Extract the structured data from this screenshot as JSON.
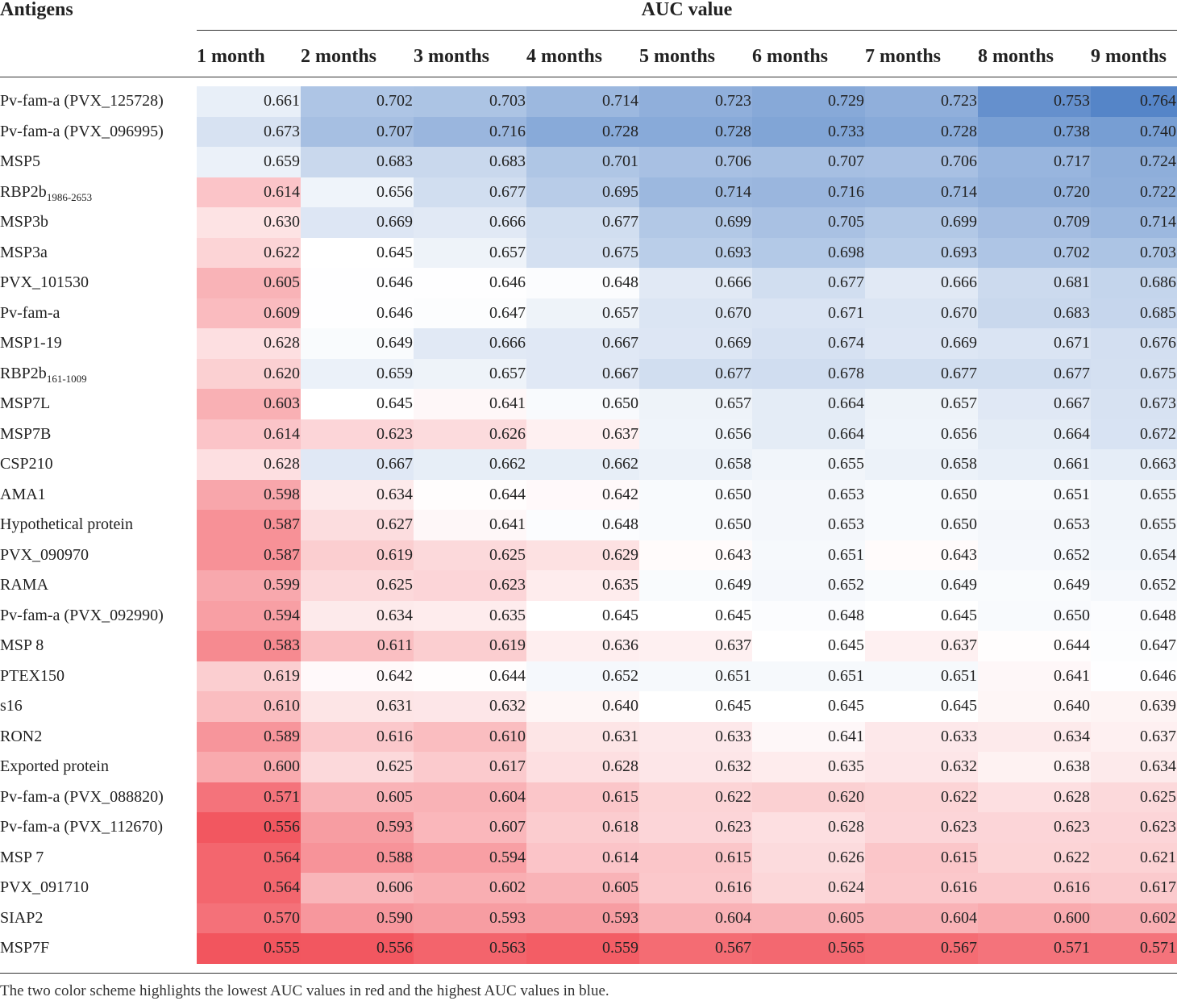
{
  "header": {
    "antigens": "Antigens",
    "auc": "AUC value",
    "months": [
      "1 month",
      "2 months",
      "3 months",
      "4 months",
      "5 months",
      "6 months",
      "7 months",
      "8 months",
      "9 months"
    ]
  },
  "colors": {
    "low": "#f2555e",
    "mid": "#ffffff",
    "high": "#5585c8"
  },
  "chart_data": {
    "type": "table",
    "title": "AUC value",
    "columns": [
      "Antigens",
      "1 month",
      "2 months",
      "3 months",
      "4 months",
      "5 months",
      "6 months",
      "7 months",
      "8 months",
      "9 months"
    ],
    "rows": [
      {
        "antigen": "Pv-fam-a (PVX_125728)",
        "values": [
          "0.661",
          "0.702",
          "0.703",
          "0.714",
          "0.723",
          "0.729",
          "0.723",
          "0.753",
          "0.764"
        ]
      },
      {
        "antigen": "Pv-fam-a (PVX_096995)",
        "values": [
          "0.673",
          "0.707",
          "0.716",
          "0.728",
          "0.728",
          "0.733",
          "0.728",
          "0.738",
          "0.740"
        ]
      },
      {
        "antigen": "MSP5",
        "values": [
          "0.659",
          "0.683",
          "0.683",
          "0.701",
          "0.706",
          "0.707",
          "0.706",
          "0.717",
          "0.724"
        ]
      },
      {
        "antigen": "RBP2b",
        "antigen_sub": "1986-2653",
        "values": [
          "0.614",
          "0.656",
          "0.677",
          "0.695",
          "0.714",
          "0.716",
          "0.714",
          "0.720",
          "0.722"
        ]
      },
      {
        "antigen": "MSP3b",
        "values": [
          "0.630",
          "0.669",
          "0.666",
          "0.677",
          "0.699",
          "0.705",
          "0.699",
          "0.709",
          "0.714"
        ]
      },
      {
        "antigen": "MSP3a",
        "values": [
          "0.622",
          "0.645",
          "0.657",
          "0.675",
          "0.693",
          "0.698",
          "0.693",
          "0.702",
          "0.703"
        ]
      },
      {
        "antigen": "PVX_101530",
        "values": [
          "0.605",
          "0.646",
          "0.646",
          "0.648",
          "0.666",
          "0.677",
          "0.666",
          "0.681",
          "0.686"
        ]
      },
      {
        "antigen": "Pv-fam-a",
        "values": [
          "0.609",
          "0.646",
          "0.647",
          "0.657",
          "0.670",
          "0.671",
          "0.670",
          "0.683",
          "0.685"
        ]
      },
      {
        "antigen": "MSP1-19",
        "values": [
          "0.628",
          "0.649",
          "0.666",
          "0.667",
          "0.669",
          "0.674",
          "0.669",
          "0.671",
          "0.676"
        ]
      },
      {
        "antigen": "RBP2b",
        "antigen_sub": "161-1009",
        "values": [
          "0.620",
          "0.659",
          "0.657",
          "0.667",
          "0.677",
          "0.678",
          "0.677",
          "0.677",
          "0.675"
        ]
      },
      {
        "antigen": "MSP7L",
        "values": [
          "0.603",
          "0.645",
          "0.641",
          "0.650",
          "0.657",
          "0.664",
          "0.657",
          "0.667",
          "0.673"
        ]
      },
      {
        "antigen": "MSP7B",
        "values": [
          "0.614",
          "0.623",
          "0.626",
          "0.637",
          "0.656",
          "0.664",
          "0.656",
          "0.664",
          "0.672"
        ]
      },
      {
        "antigen": "CSP210",
        "values": [
          "0.628",
          "0.667",
          "0.662",
          "0.662",
          "0.658",
          "0.655",
          "0.658",
          "0.661",
          "0.663"
        ]
      },
      {
        "antigen": "AMA1",
        "values": [
          "0.598",
          "0.634",
          "0.644",
          "0.642",
          "0.650",
          "0.653",
          "0.650",
          "0.651",
          "0.655"
        ]
      },
      {
        "antigen": "Hypothetical protein",
        "values": [
          "0.587",
          "0.627",
          "0.641",
          "0.648",
          "0.650",
          "0.653",
          "0.650",
          "0.653",
          "0.655"
        ]
      },
      {
        "antigen": "PVX_090970",
        "values": [
          "0.587",
          "0.619",
          "0.625",
          "0.629",
          "0.643",
          "0.651",
          "0.643",
          "0.652",
          "0.654"
        ]
      },
      {
        "antigen": "RAMA",
        "values": [
          "0.599",
          "0.625",
          "0.623",
          "0.635",
          "0.649",
          "0.652",
          "0.649",
          "0.649",
          "0.652"
        ]
      },
      {
        "antigen": "Pv-fam-a (PVX_092990)",
        "values": [
          "0.594",
          "0.634",
          "0.635",
          "0.645",
          "0.645",
          "0.648",
          "0.645",
          "0.650",
          "0.648"
        ]
      },
      {
        "antigen": "MSP 8",
        "values": [
          "0.583",
          "0.611",
          "0.619",
          "0.636",
          "0.637",
          "0.645",
          "0.637",
          "0.644",
          "0.647"
        ]
      },
      {
        "antigen": "PTEX150",
        "values": [
          "0.619",
          "0.642",
          "0.644",
          "0.652",
          "0.651",
          "0.651",
          "0.651",
          "0.641",
          "0.646"
        ]
      },
      {
        "antigen": "s16",
        "values": [
          "0.610",
          "0.631",
          "0.632",
          "0.640",
          "0.645",
          "0.645",
          "0.645",
          "0.640",
          "0.639"
        ]
      },
      {
        "antigen": "RON2",
        "values": [
          "0.589",
          "0.616",
          "0.610",
          "0.631",
          "0.633",
          "0.641",
          "0.633",
          "0.634",
          "0.637"
        ]
      },
      {
        "antigen": "Exported protein",
        "values": [
          "0.600",
          "0.625",
          "0.617",
          "0.628",
          "0.632",
          "0.635",
          "0.632",
          "0.638",
          "0.634"
        ]
      },
      {
        "antigen": "Pv-fam-a (PVX_088820)",
        "values": [
          "0.571",
          "0.605",
          "0.604",
          "0.615",
          "0.622",
          "0.620",
          "0.622",
          "0.628",
          "0.625"
        ]
      },
      {
        "antigen": "Pv-fam-a (PVX_112670)",
        "values": [
          "0.556",
          "0.593",
          "0.607",
          "0.618",
          "0.623",
          "0.628",
          "0.623",
          "0.623",
          "0.623"
        ]
      },
      {
        "antigen": "MSP 7",
        "values": [
          "0.564",
          "0.588",
          "0.594",
          "0.614",
          "0.615",
          "0.626",
          "0.615",
          "0.622",
          "0.621"
        ]
      },
      {
        "antigen": "PVX_091710",
        "values": [
          "0.564",
          "0.606",
          "0.602",
          "0.605",
          "0.616",
          "0.624",
          "0.616",
          "0.616",
          "0.617"
        ]
      },
      {
        "antigen": "SIAP2",
        "values": [
          "0.570",
          "0.590",
          "0.593",
          "0.593",
          "0.604",
          "0.605",
          "0.604",
          "0.600",
          "0.602"
        ]
      },
      {
        "antigen": "MSP7F",
        "values": [
          "0.555",
          "0.556",
          "0.563",
          "0.559",
          "0.567",
          "0.565",
          "0.567",
          "0.571",
          "0.571"
        ]
      }
    ]
  },
  "footnote": "The two color scheme highlights the lowest AUC values in red and the highest AUC values in blue."
}
